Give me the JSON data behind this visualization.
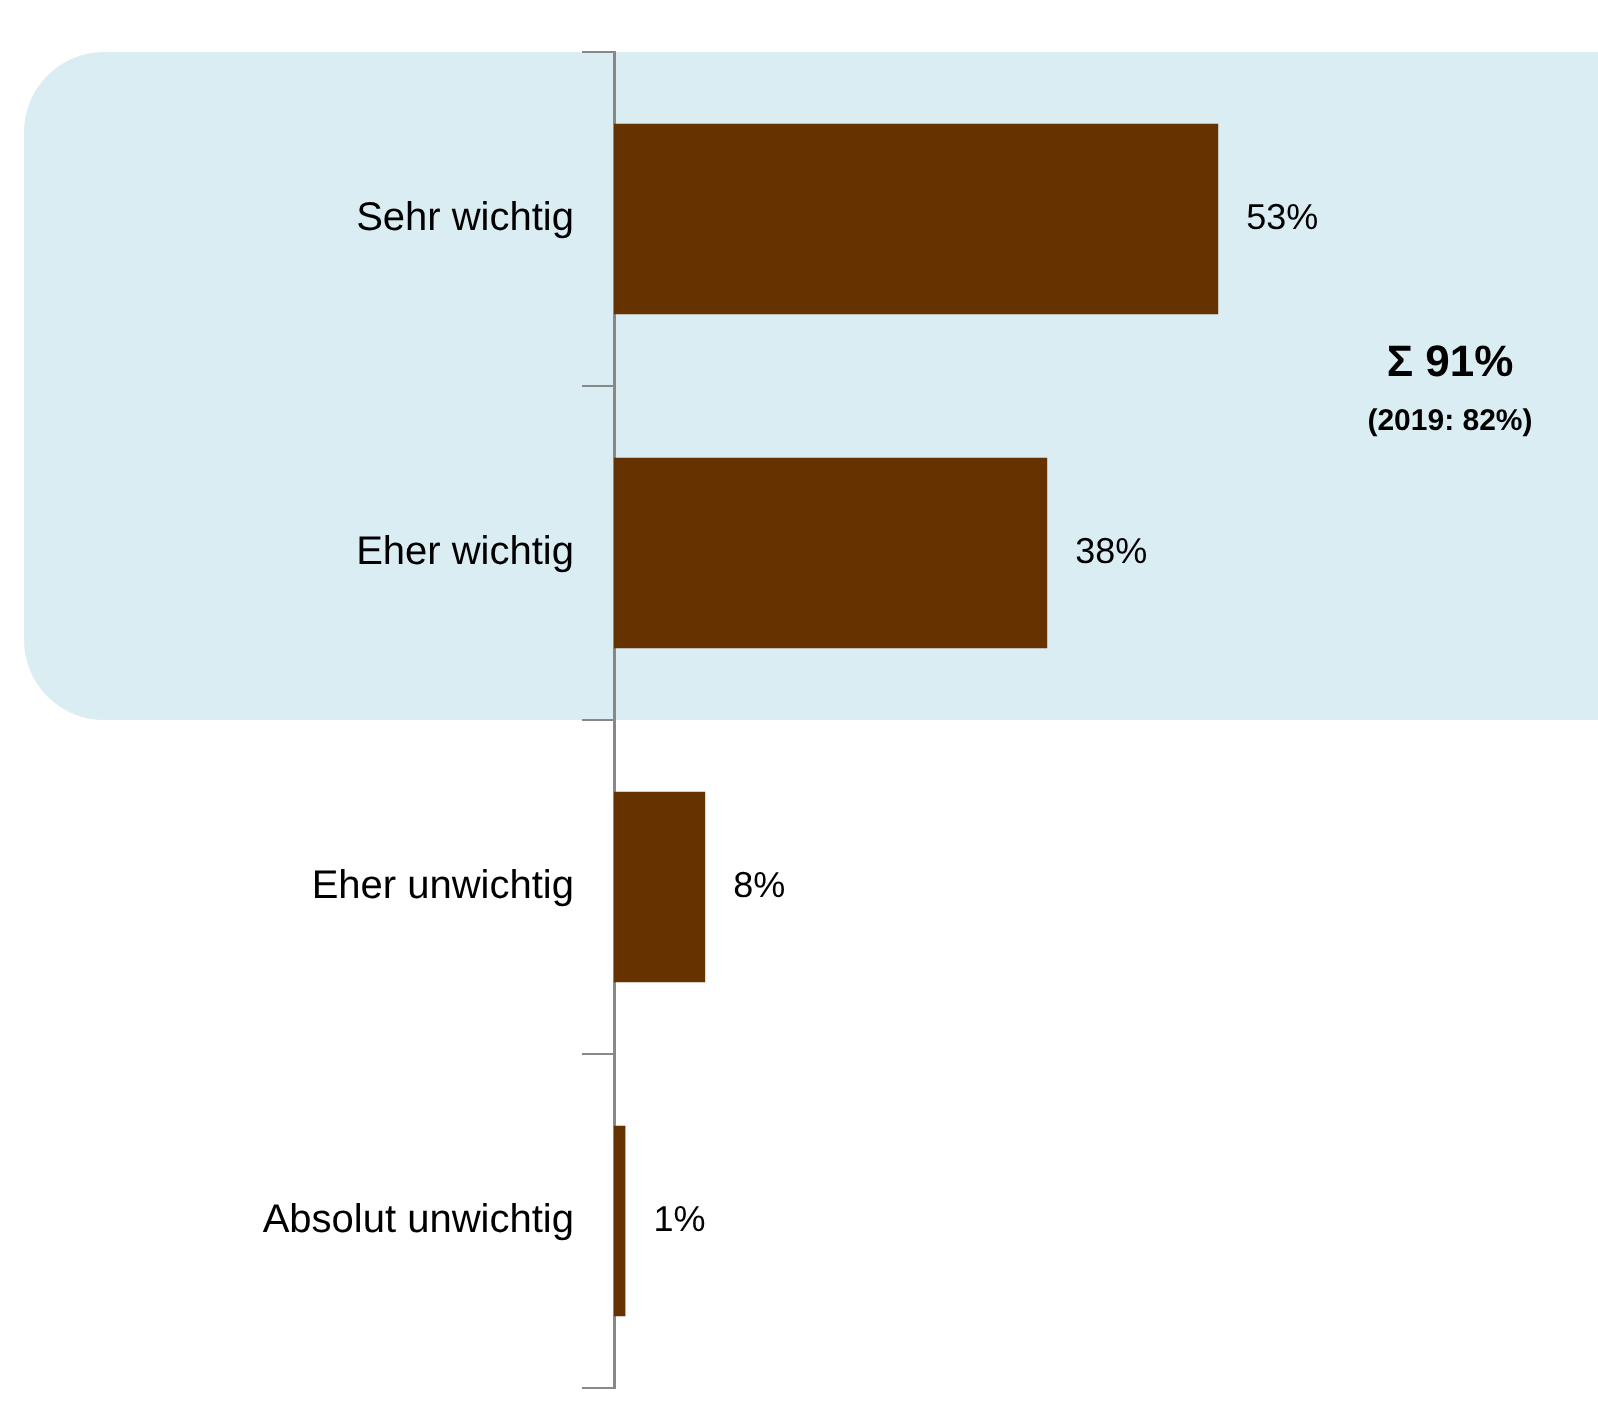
{
  "chart_data": {
    "type": "bar",
    "orientation": "horizontal",
    "categories": [
      "Sehr wichtig",
      "Eher wichtig",
      "Eher unwichtig",
      "Absolut unwichtig"
    ],
    "values": [
      53,
      38,
      8,
      1
    ],
    "value_labels": [
      "53%",
      "38%",
      "8%",
      "1%"
    ],
    "color": "#663300",
    "tick_labels": "y",
    "bands": [
      {
        "axis": "y",
        "from": "Sehr wichtig",
        "to": "Eher wichtig",
        "color": "#daedf3"
      }
    ],
    "annotations": [
      "Σ 91%",
      "(2019: 82%)"
    ]
  }
}
